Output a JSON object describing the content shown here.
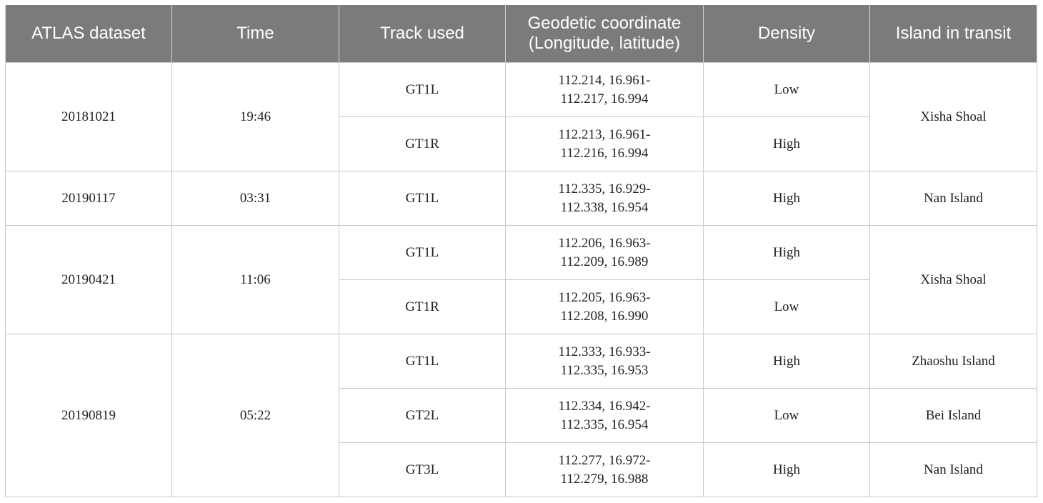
{
  "table": {
    "headers": [
      "ATLAS dataset",
      "Time",
      "Track used",
      "Geodetic coordinate",
      "(Longitude, latitude)",
      "Density",
      "Island in transit"
    ],
    "groups": [
      {
        "dataset": "20181021",
        "time": "19:46",
        "rows": [
          {
            "track": "GT1L",
            "coord1": "112.214, 16.961-",
            "coord2": "112.217, 16.994",
            "density": "Low"
          },
          {
            "track": "GT1R",
            "coord1": "112.213, 16.961-",
            "coord2": "112.216, 16.994",
            "density": "High"
          }
        ],
        "islands": [
          "Xisha Shoal"
        ]
      },
      {
        "dataset": "20190117",
        "time": "03:31",
        "rows": [
          {
            "track": "GT1L",
            "coord1": "112.335, 16.929-",
            "coord2": "112.338, 16.954",
            "density": "High"
          }
        ],
        "islands": [
          "Nan Island"
        ]
      },
      {
        "dataset": "20190421",
        "time": "11:06",
        "rows": [
          {
            "track": "GT1L",
            "coord1": "112.206, 16.963-",
            "coord2": "112.209, 16.989",
            "density": "High"
          },
          {
            "track": "GT1R",
            "coord1": "112.205, 16.963-",
            "coord2": "112.208, 16.990",
            "density": "Low"
          }
        ],
        "islands": [
          "Xisha Shoal"
        ]
      },
      {
        "dataset": "20190819",
        "time": "05:22",
        "rows": [
          {
            "track": "GT1L",
            "coord1": "112.333, 16.933-",
            "coord2": "112.335, 16.953",
            "density": "High"
          },
          {
            "track": "GT2L",
            "coord1": "112.334, 16.942-",
            "coord2": "112.335, 16.954",
            "density": "Low"
          },
          {
            "track": "GT3L",
            "coord1": "112.277, 16.972-",
            "coord2": "112.279, 16.988",
            "density": "High"
          }
        ],
        "islands": [
          "Zhaoshu Island",
          "Bei Island",
          "Nan Island"
        ]
      }
    ]
  }
}
